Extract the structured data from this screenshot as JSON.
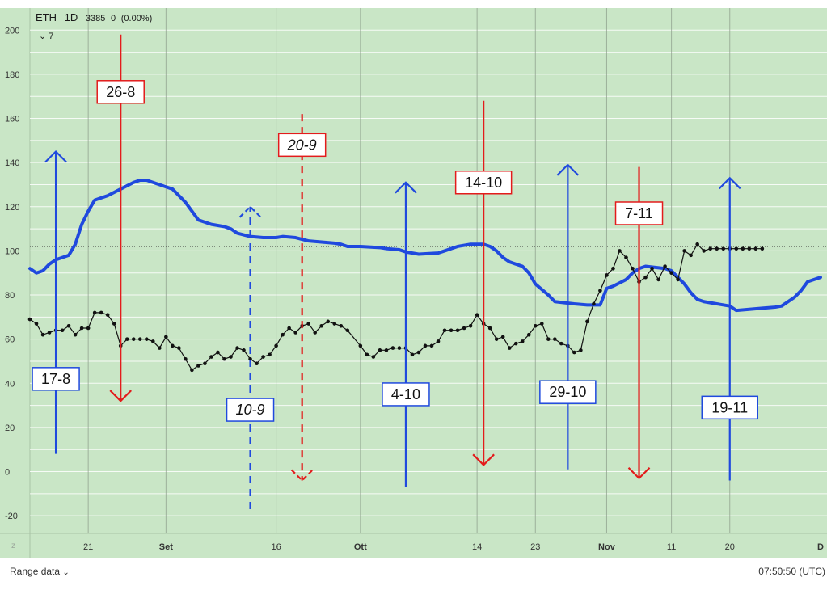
{
  "legend": {
    "symbol": "ETH",
    "timeframe": "1D",
    "value": "3385",
    "change": "0",
    "change_pct": "(0.00%)",
    "collapse_count": "7"
  },
  "footer": {
    "range_label": "Range data",
    "time": "07:50:50 (UTC)",
    "corner": "z"
  },
  "colors": {
    "background": "#c9e6c6",
    "grid": "#ffffff",
    "blue": "#1f49de",
    "red": "#e31b1b",
    "black": "#111111"
  },
  "chart_data": {
    "type": "line",
    "grid": true,
    "ylim": [
      -28,
      210
    ],
    "xlim": [
      0,
      123
    ],
    "yticks": [
      200,
      180,
      160,
      140,
      120,
      100,
      80,
      60,
      40,
      20,
      0,
      -20
    ],
    "xticks": [
      {
        "label": "21",
        "x": 9
      },
      {
        "label": "Set",
        "x": 21
      },
      {
        "label": "16",
        "x": 38
      },
      {
        "label": "Ott",
        "x": 51
      },
      {
        "label": "14",
        "x": 69
      },
      {
        "label": "23",
        "x": 78
      },
      {
        "label": "Nov",
        "x": 89
      },
      {
        "label": "11",
        "x": 99
      },
      {
        "label": "20",
        "x": 108
      },
      {
        "label": "D",
        "x": 122
      }
    ],
    "vgrid_x": [
      9,
      21,
      38,
      51,
      69,
      78,
      89,
      99,
      108
    ],
    "reference_line": 102,
    "series": [
      {
        "style": "thick-blue",
        "points": [
          [
            0,
            92
          ],
          [
            1,
            90
          ],
          [
            2,
            91
          ],
          [
            3,
            94
          ],
          [
            4,
            96
          ],
          [
            6,
            98
          ],
          [
            7,
            103
          ],
          [
            8,
            112
          ],
          [
            9,
            118
          ],
          [
            10,
            123
          ],
          [
            12,
            125
          ],
          [
            14,
            128
          ],
          [
            16,
            131
          ],
          [
            17,
            132
          ],
          [
            18,
            132
          ],
          [
            19,
            131
          ],
          [
            21,
            129
          ],
          [
            22,
            128
          ],
          [
            24,
            122
          ],
          [
            26,
            114
          ],
          [
            28,
            112
          ],
          [
            30,
            111
          ],
          [
            31,
            110
          ],
          [
            32,
            108
          ],
          [
            34,
            106.5
          ],
          [
            36,
            106
          ],
          [
            38,
            106
          ],
          [
            39,
            106.5
          ],
          [
            41,
            106
          ],
          [
            43,
            104.5
          ],
          [
            45,
            104
          ],
          [
            47,
            103.5
          ],
          [
            48,
            103
          ],
          [
            49,
            102
          ],
          [
            51,
            102
          ],
          [
            54,
            101.5
          ],
          [
            55,
            101
          ],
          [
            57,
            100.5
          ],
          [
            58,
            99.5
          ],
          [
            60,
            98.5
          ],
          [
            63,
            99
          ],
          [
            64,
            100
          ],
          [
            65,
            101
          ],
          [
            66,
            102
          ],
          [
            68,
            103
          ],
          [
            70,
            103
          ],
          [
            71,
            102
          ],
          [
            72,
            100
          ],
          [
            73,
            97
          ],
          [
            74,
            95
          ],
          [
            76,
            93
          ],
          [
            77,
            90
          ],
          [
            78,
            85
          ],
          [
            80,
            80
          ],
          [
            81,
            77
          ],
          [
            84,
            76
          ],
          [
            86,
            75.5
          ],
          [
            88,
            75.5
          ],
          [
            89,
            83
          ],
          [
            90,
            84
          ],
          [
            92,
            87
          ],
          [
            93,
            90
          ],
          [
            94,
            92
          ],
          [
            95,
            93
          ],
          [
            98,
            92
          ],
          [
            99,
            91
          ],
          [
            100,
            88
          ],
          [
            101,
            85
          ],
          [
            102,
            81
          ],
          [
            103,
            78
          ],
          [
            104,
            77
          ],
          [
            106,
            76
          ],
          [
            108,
            75
          ],
          [
            109,
            73
          ],
          [
            111,
            73.5
          ],
          [
            113,
            74
          ],
          [
            115,
            74.5
          ],
          [
            116,
            75
          ],
          [
            118,
            79
          ],
          [
            119,
            82
          ],
          [
            120,
            86
          ],
          [
            122,
            88
          ]
        ]
      },
      {
        "style": "black-dotted",
        "points": [
          [
            0,
            69
          ],
          [
            1,
            67
          ],
          [
            2,
            62
          ],
          [
            3,
            63
          ],
          [
            4,
            64
          ],
          [
            5,
            64
          ],
          [
            6,
            66
          ],
          [
            7,
            62
          ],
          [
            8,
            65
          ],
          [
            9,
            65
          ],
          [
            10,
            72
          ],
          [
            11,
            72
          ],
          [
            12,
            71
          ],
          [
            13,
            67
          ],
          [
            14,
            57
          ],
          [
            15,
            60
          ],
          [
            16,
            60
          ],
          [
            17,
            60
          ],
          [
            18,
            60
          ],
          [
            19,
            59
          ],
          [
            20,
            56
          ],
          [
            21,
            61
          ],
          [
            22,
            57
          ],
          [
            23,
            56
          ],
          [
            24,
            51
          ],
          [
            25,
            46
          ],
          [
            26,
            48
          ],
          [
            27,
            49
          ],
          [
            28,
            52
          ],
          [
            29,
            54
          ],
          [
            30,
            51
          ],
          [
            31,
            52
          ],
          [
            32,
            56
          ],
          [
            33,
            55
          ],
          [
            34,
            51
          ],
          [
            35,
            49
          ],
          [
            36,
            52
          ],
          [
            37,
            53
          ],
          [
            38,
            57
          ],
          [
            39,
            62
          ],
          [
            40,
            65
          ],
          [
            41,
            63
          ],
          [
            42,
            66
          ],
          [
            43,
            67
          ],
          [
            44,
            63
          ],
          [
            45,
            66
          ],
          [
            46,
            68
          ],
          [
            47,
            67
          ],
          [
            48,
            66
          ],
          [
            49,
            64
          ],
          [
            51,
            57
          ],
          [
            52,
            53
          ],
          [
            53,
            52
          ],
          [
            54,
            55
          ],
          [
            55,
            55
          ],
          [
            56,
            56
          ],
          [
            57,
            56
          ],
          [
            58,
            56
          ],
          [
            59,
            53
          ],
          [
            60,
            54
          ],
          [
            61,
            57
          ],
          [
            62,
            57
          ],
          [
            63,
            59
          ],
          [
            64,
            64
          ],
          [
            65,
            64
          ],
          [
            66,
            64
          ],
          [
            67,
            65
          ],
          [
            68,
            66
          ],
          [
            69,
            71
          ],
          [
            70,
            67
          ],
          [
            71,
            65
          ],
          [
            72,
            60
          ],
          [
            73,
            61
          ],
          [
            74,
            56
          ],
          [
            75,
            58
          ],
          [
            76,
            59
          ],
          [
            77,
            62
          ],
          [
            78,
            66
          ],
          [
            79,
            67
          ],
          [
            80,
            60
          ],
          [
            81,
            60
          ],
          [
            82,
            58
          ],
          [
            83,
            57
          ],
          [
            84,
            54
          ],
          [
            85,
            55
          ],
          [
            86,
            68
          ],
          [
            87,
            76
          ],
          [
            88,
            82
          ],
          [
            89,
            89
          ],
          [
            90,
            92
          ],
          [
            91,
            100
          ],
          [
            92,
            97
          ],
          [
            93,
            92
          ],
          [
            94,
            86
          ],
          [
            95,
            88
          ],
          [
            96,
            92
          ],
          [
            97,
            87
          ],
          [
            98,
            93
          ],
          [
            99,
            90
          ],
          [
            100,
            87
          ],
          [
            101,
            100
          ],
          [
            102,
            98
          ],
          [
            103,
            103
          ],
          [
            104,
            100
          ],
          [
            105,
            101
          ],
          [
            106,
            101
          ],
          [
            107,
            101
          ],
          [
            108,
            101
          ],
          [
            109,
            101
          ],
          [
            110,
            101
          ],
          [
            111,
            101
          ],
          [
            112,
            101
          ],
          [
            113,
            101
          ]
        ]
      }
    ],
    "annotations": [
      {
        "label": "17-8",
        "x": 4,
        "direction": "up",
        "y_from": 8,
        "y_to": 145,
        "color": "blue",
        "dashed": false,
        "italic": false,
        "label_y": 42
      },
      {
        "label": "26-8",
        "x": 14,
        "direction": "down",
        "y_from": 198,
        "y_to": 32,
        "color": "red",
        "dashed": false,
        "italic": false,
        "label_y": 172
      },
      {
        "label": "10-9",
        "x": 34,
        "direction": "up",
        "y_from": -17,
        "y_to": 120,
        "color": "blue",
        "dashed": true,
        "italic": true,
        "label_y": 28
      },
      {
        "label": "20-9",
        "x": 42,
        "direction": "down",
        "y_from": 162,
        "y_to": -4,
        "color": "red",
        "dashed": true,
        "italic": true,
        "label_y": 148
      },
      {
        "label": "4-10",
        "x": 58,
        "direction": "up",
        "y_from": -7,
        "y_to": 131,
        "color": "blue",
        "dashed": false,
        "italic": false,
        "label_y": 35
      },
      {
        "label": "14-10",
        "x": 70,
        "direction": "down",
        "y_from": 168,
        "y_to": 3,
        "color": "red",
        "dashed": false,
        "italic": false,
        "label_y": 131
      },
      {
        "label": "29-10",
        "x": 83,
        "direction": "up",
        "y_from": 1,
        "y_to": 139,
        "color": "blue",
        "dashed": false,
        "italic": false,
        "label_y": 36
      },
      {
        "label": "7-11",
        "x": 94,
        "direction": "down",
        "y_from": 138,
        "y_to": -3,
        "color": "red",
        "dashed": false,
        "italic": false,
        "label_y": 117
      },
      {
        "label": "19-11",
        "x": 108,
        "direction": "up",
        "y_from": -4,
        "y_to": 133,
        "color": "blue",
        "dashed": false,
        "italic": false,
        "label_y": 29
      }
    ]
  }
}
